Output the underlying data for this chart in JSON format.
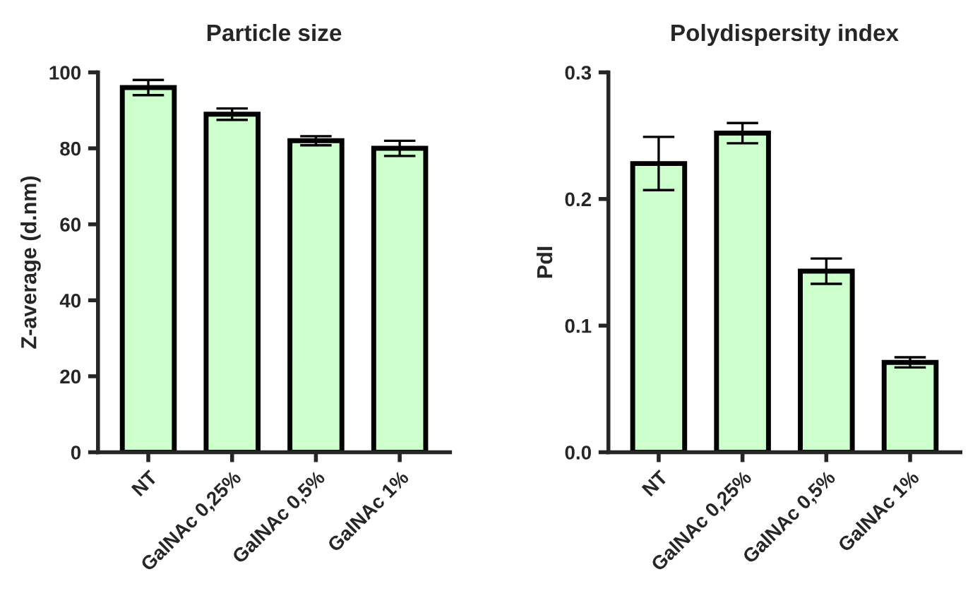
{
  "chart_data": [
    {
      "type": "bar",
      "title": "Particle size",
      "ylabel": "Z-average (d.nm)",
      "categories": [
        "NT",
        "GalNAc 0,25%",
        "GalNAc 0,5%",
        "GalNAc 1%"
      ],
      "values": [
        96,
        89,
        82,
        80
      ],
      "errors": [
        2,
        1.5,
        1.2,
        2
      ],
      "color": "#ccffcc",
      "ylim": [
        0,
        100
      ],
      "yticks": [
        0,
        20,
        40,
        60,
        80,
        100
      ],
      "grid": false,
      "legend": false
    },
    {
      "type": "bar",
      "title": "Polydispersity index",
      "ylabel": "PdI",
      "categories": [
        "NT",
        "GalNAc 0,25%",
        "GalNAc 0,5%",
        "GalNAc 1%"
      ],
      "values": [
        0.228,
        0.252,
        0.143,
        0.071
      ],
      "errors": [
        0.021,
        0.008,
        0.01,
        0.004
      ],
      "color": "#ccffcc",
      "ylim": [
        0,
        0.3
      ],
      "yticks": [
        {
          "value": 0,
          "label": "0.0"
        },
        0.1,
        0.2,
        0.3
      ],
      "grid": false,
      "legend": false
    }
  ]
}
